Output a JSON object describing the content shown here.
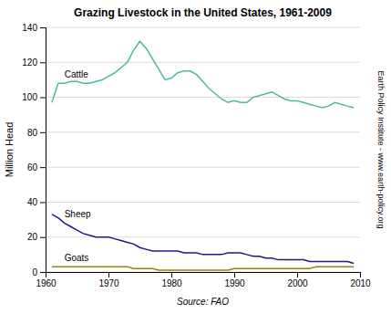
{
  "chart_data": {
    "type": "line",
    "title": "Grazing Livestock in the United States, 1961-2009",
    "y_label": "Million Head",
    "annotations": [
      "Source: FAO",
      "Earth Policy Institute - www.earth-policy.org"
    ],
    "x": [
      1961,
      1962,
      1963,
      1964,
      1965,
      1966,
      1967,
      1968,
      1969,
      1970,
      1971,
      1972,
      1973,
      1974,
      1975,
      1976,
      1977,
      1978,
      1979,
      1980,
      1981,
      1982,
      1983,
      1984,
      1985,
      1986,
      1987,
      1988,
      1989,
      1990,
      1991,
      1992,
      1993,
      1994,
      1995,
      1996,
      1997,
      1998,
      1999,
      2000,
      2001,
      2002,
      2003,
      2004,
      2005,
      2006,
      2007,
      2008,
      2009
    ],
    "series": [
      {
        "name": "Cattle",
        "color": "#4db8a4",
        "values": [
          97,
          108,
          108,
          109,
          109,
          108,
          108,
          109,
          110,
          112,
          114,
          117,
          120,
          127,
          132,
          128,
          122,
          116,
          110,
          111,
          114,
          115,
          115,
          113,
          109,
          105,
          102,
          99,
          97,
          98,
          97,
          97,
          100,
          101,
          102,
          103,
          101,
          99,
          98,
          98,
          97,
          96,
          95,
          94,
          95,
          97,
          96,
          95,
          94
        ]
      },
      {
        "name": "Sheep",
        "color": "#1a1a8c",
        "values": [
          33,
          31,
          28,
          26,
          24,
          22,
          21,
          20,
          20,
          20,
          19,
          18,
          17,
          16,
          14,
          13,
          12,
          12,
          12,
          12,
          12,
          11,
          11,
          11,
          10,
          10,
          10,
          10,
          11,
          11,
          11,
          10,
          9,
          9,
          8,
          8,
          7,
          7,
          7,
          7,
          7,
          6,
          6,
          6,
          6,
          6,
          6,
          6,
          5
        ]
      },
      {
        "name": "Goats",
        "color": "#9b8200",
        "values": [
          3,
          3,
          3,
          3,
          3,
          3,
          3,
          3,
          3,
          3,
          3,
          3,
          3,
          2,
          2,
          2,
          2,
          1,
          1,
          1,
          1,
          1,
          1,
          1,
          1,
          1,
          1,
          1,
          1,
          2,
          2,
          2,
          2,
          2,
          2,
          2,
          2,
          2,
          2,
          2,
          2,
          2,
          3,
          3,
          3,
          3,
          3,
          3,
          3
        ]
      }
    ],
    "xlim": [
      1960,
      2010
    ],
    "xticks": [
      1960,
      1970,
      1980,
      1990,
      2000,
      2010
    ],
    "ylim": [
      0,
      140
    ],
    "yticks": [
      0,
      20,
      40,
      60,
      80,
      100,
      120,
      140
    ],
    "grid": true
  }
}
